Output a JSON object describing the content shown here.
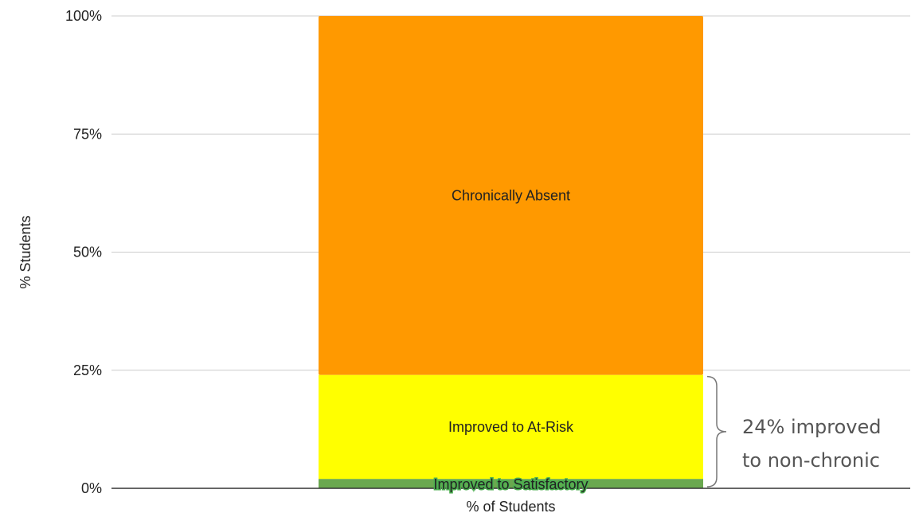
{
  "chart_data": {
    "type": "bar",
    "stacked": true,
    "categories": [
      "% of Students"
    ],
    "series": [
      {
        "name": "Improved to Satisfactory",
        "values": [
          2
        ],
        "color": "#6aa84f"
      },
      {
        "name": "Improved to At-Risk",
        "values": [
          22
        ],
        "color": "#ffff00"
      },
      {
        "name": "Chronically Absent",
        "values": [
          76
        ],
        "color": "#ff9900"
      }
    ],
    "xlabel": "% of Students",
    "ylabel": "% Students",
    "ylim": [
      0,
      100
    ],
    "yticks": [
      "0%",
      "25%",
      "50%",
      "75%",
      "100%"
    ],
    "ytick_values": [
      0,
      25,
      50,
      75,
      100
    ],
    "grid": true,
    "legend": "none",
    "annotation": {
      "line1": "24% improved",
      "line2": "to non-chronic",
      "covers_range": [
        0,
        24
      ]
    }
  }
}
